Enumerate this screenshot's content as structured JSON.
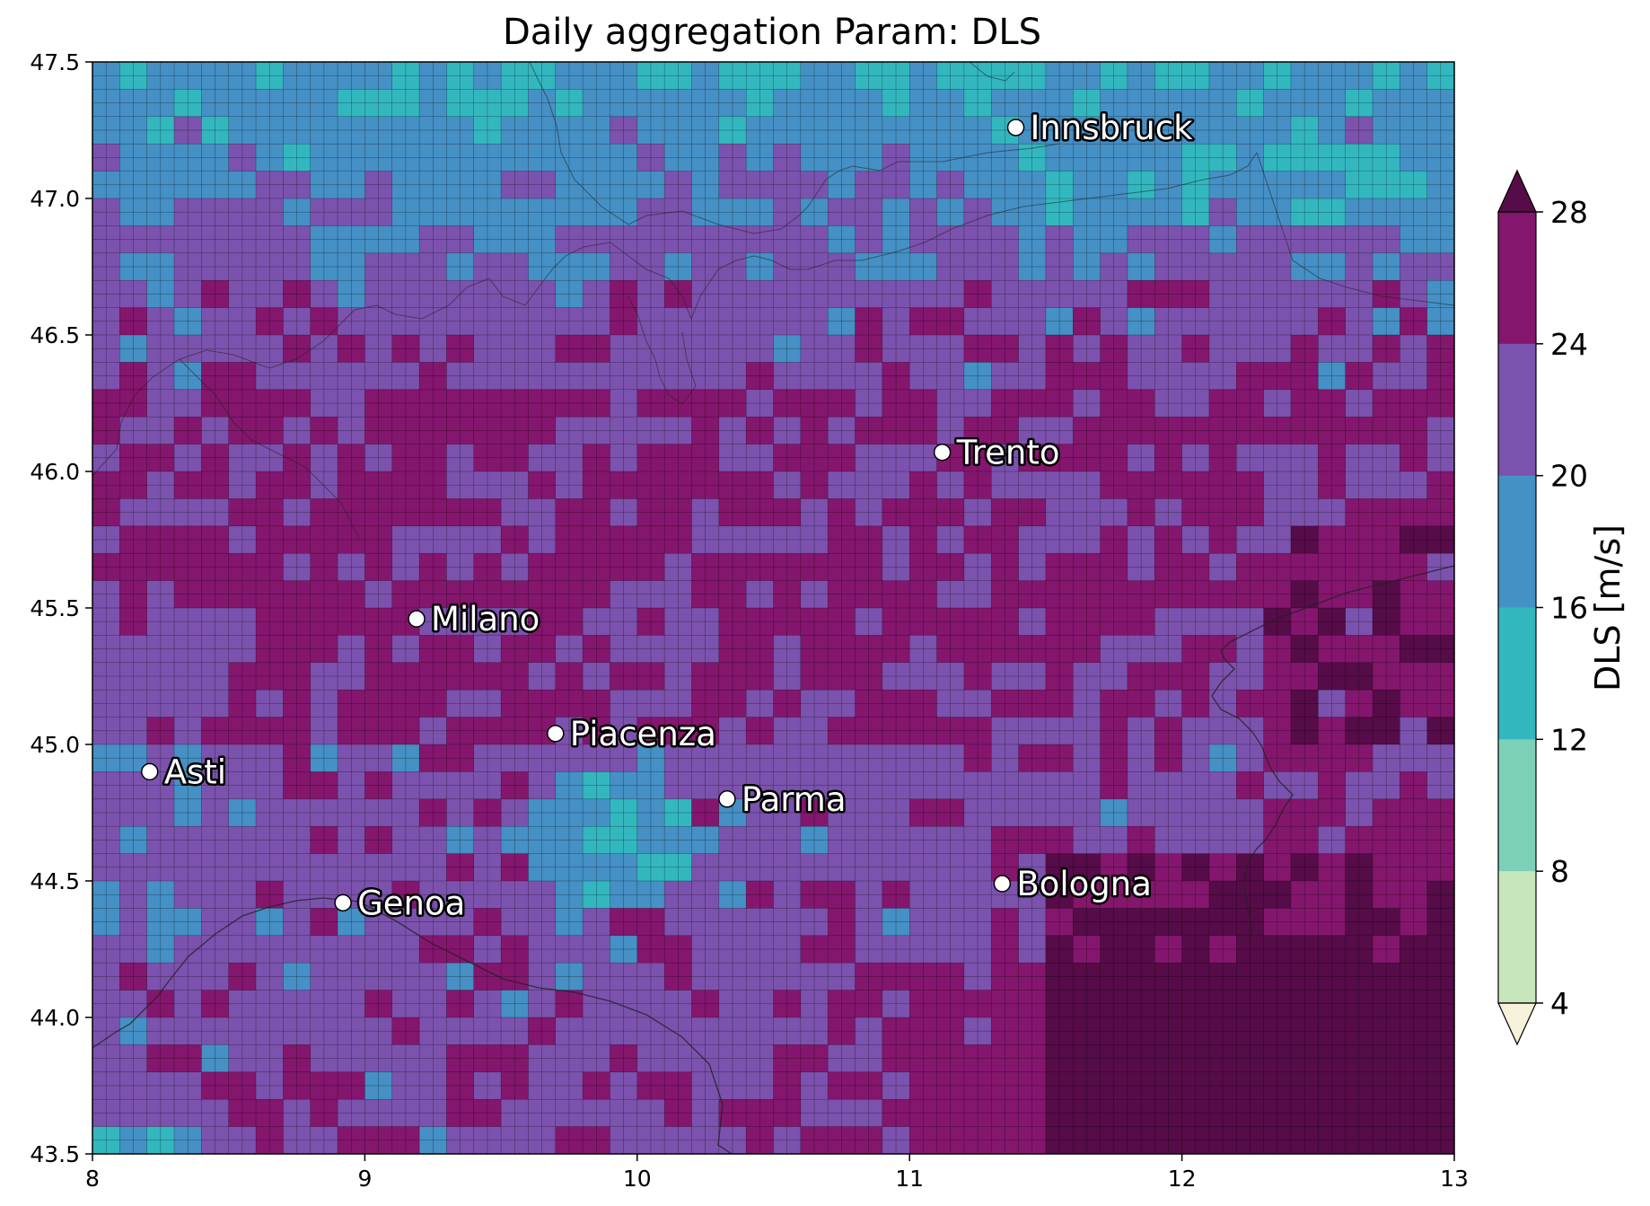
{
  "title": "Daily aggregation Param: DLS",
  "map": {
    "lon_range": [
      8,
      13
    ],
    "lat_range": [
      43.5,
      47.5
    ],
    "grid_cols": 50,
    "grid_rows": 40,
    "x_ticks": [
      "8",
      "9",
      "10",
      "11",
      "12",
      "13"
    ],
    "y_ticks": [
      "43.5",
      "44.0",
      "44.5",
      "45.0",
      "45.5",
      "46.0",
      "46.5",
      "47.0",
      "47.5"
    ],
    "legend_classes": [
      {
        "range": "<4",
        "color": "#f7f0db"
      },
      {
        "range": "4-8",
        "color": "#c8e6bc"
      },
      {
        "range": "8-12",
        "color": "#7dd0b8"
      },
      {
        "range": "12-16",
        "color": "#33b7bf"
      },
      {
        "range": "16-20",
        "color": "#4590c5"
      },
      {
        "range": "20-24",
        "color": "#7b52ad"
      },
      {
        "range": "24-28",
        "color": "#84166d"
      },
      {
        "range": ">28",
        "color": "#560c48"
      }
    ],
    "cities": [
      {
        "name": "Innsbruck",
        "lon": 11.39,
        "lat": 47.26
      },
      {
        "name": "Trento",
        "lon": 11.12,
        "lat": 46.07
      },
      {
        "name": "Milano",
        "lon": 9.19,
        "lat": 45.46
      },
      {
        "name": "Piacenza",
        "lon": 9.7,
        "lat": 45.04
      },
      {
        "name": "Asti",
        "lon": 8.21,
        "lat": 44.9
      },
      {
        "name": "Parma",
        "lon": 10.33,
        "lat": 44.8
      },
      {
        "name": "Bologna",
        "lon": 11.34,
        "lat": 44.49
      },
      {
        "name": "Genoa",
        "lon": 8.92,
        "lat": 44.42
      }
    ]
  },
  "colorbar": {
    "label": "DLS  [m/s]",
    "ticks": [
      "4",
      "8",
      "12",
      "16",
      "20",
      "24",
      "28"
    ],
    "extend": "both"
  }
}
